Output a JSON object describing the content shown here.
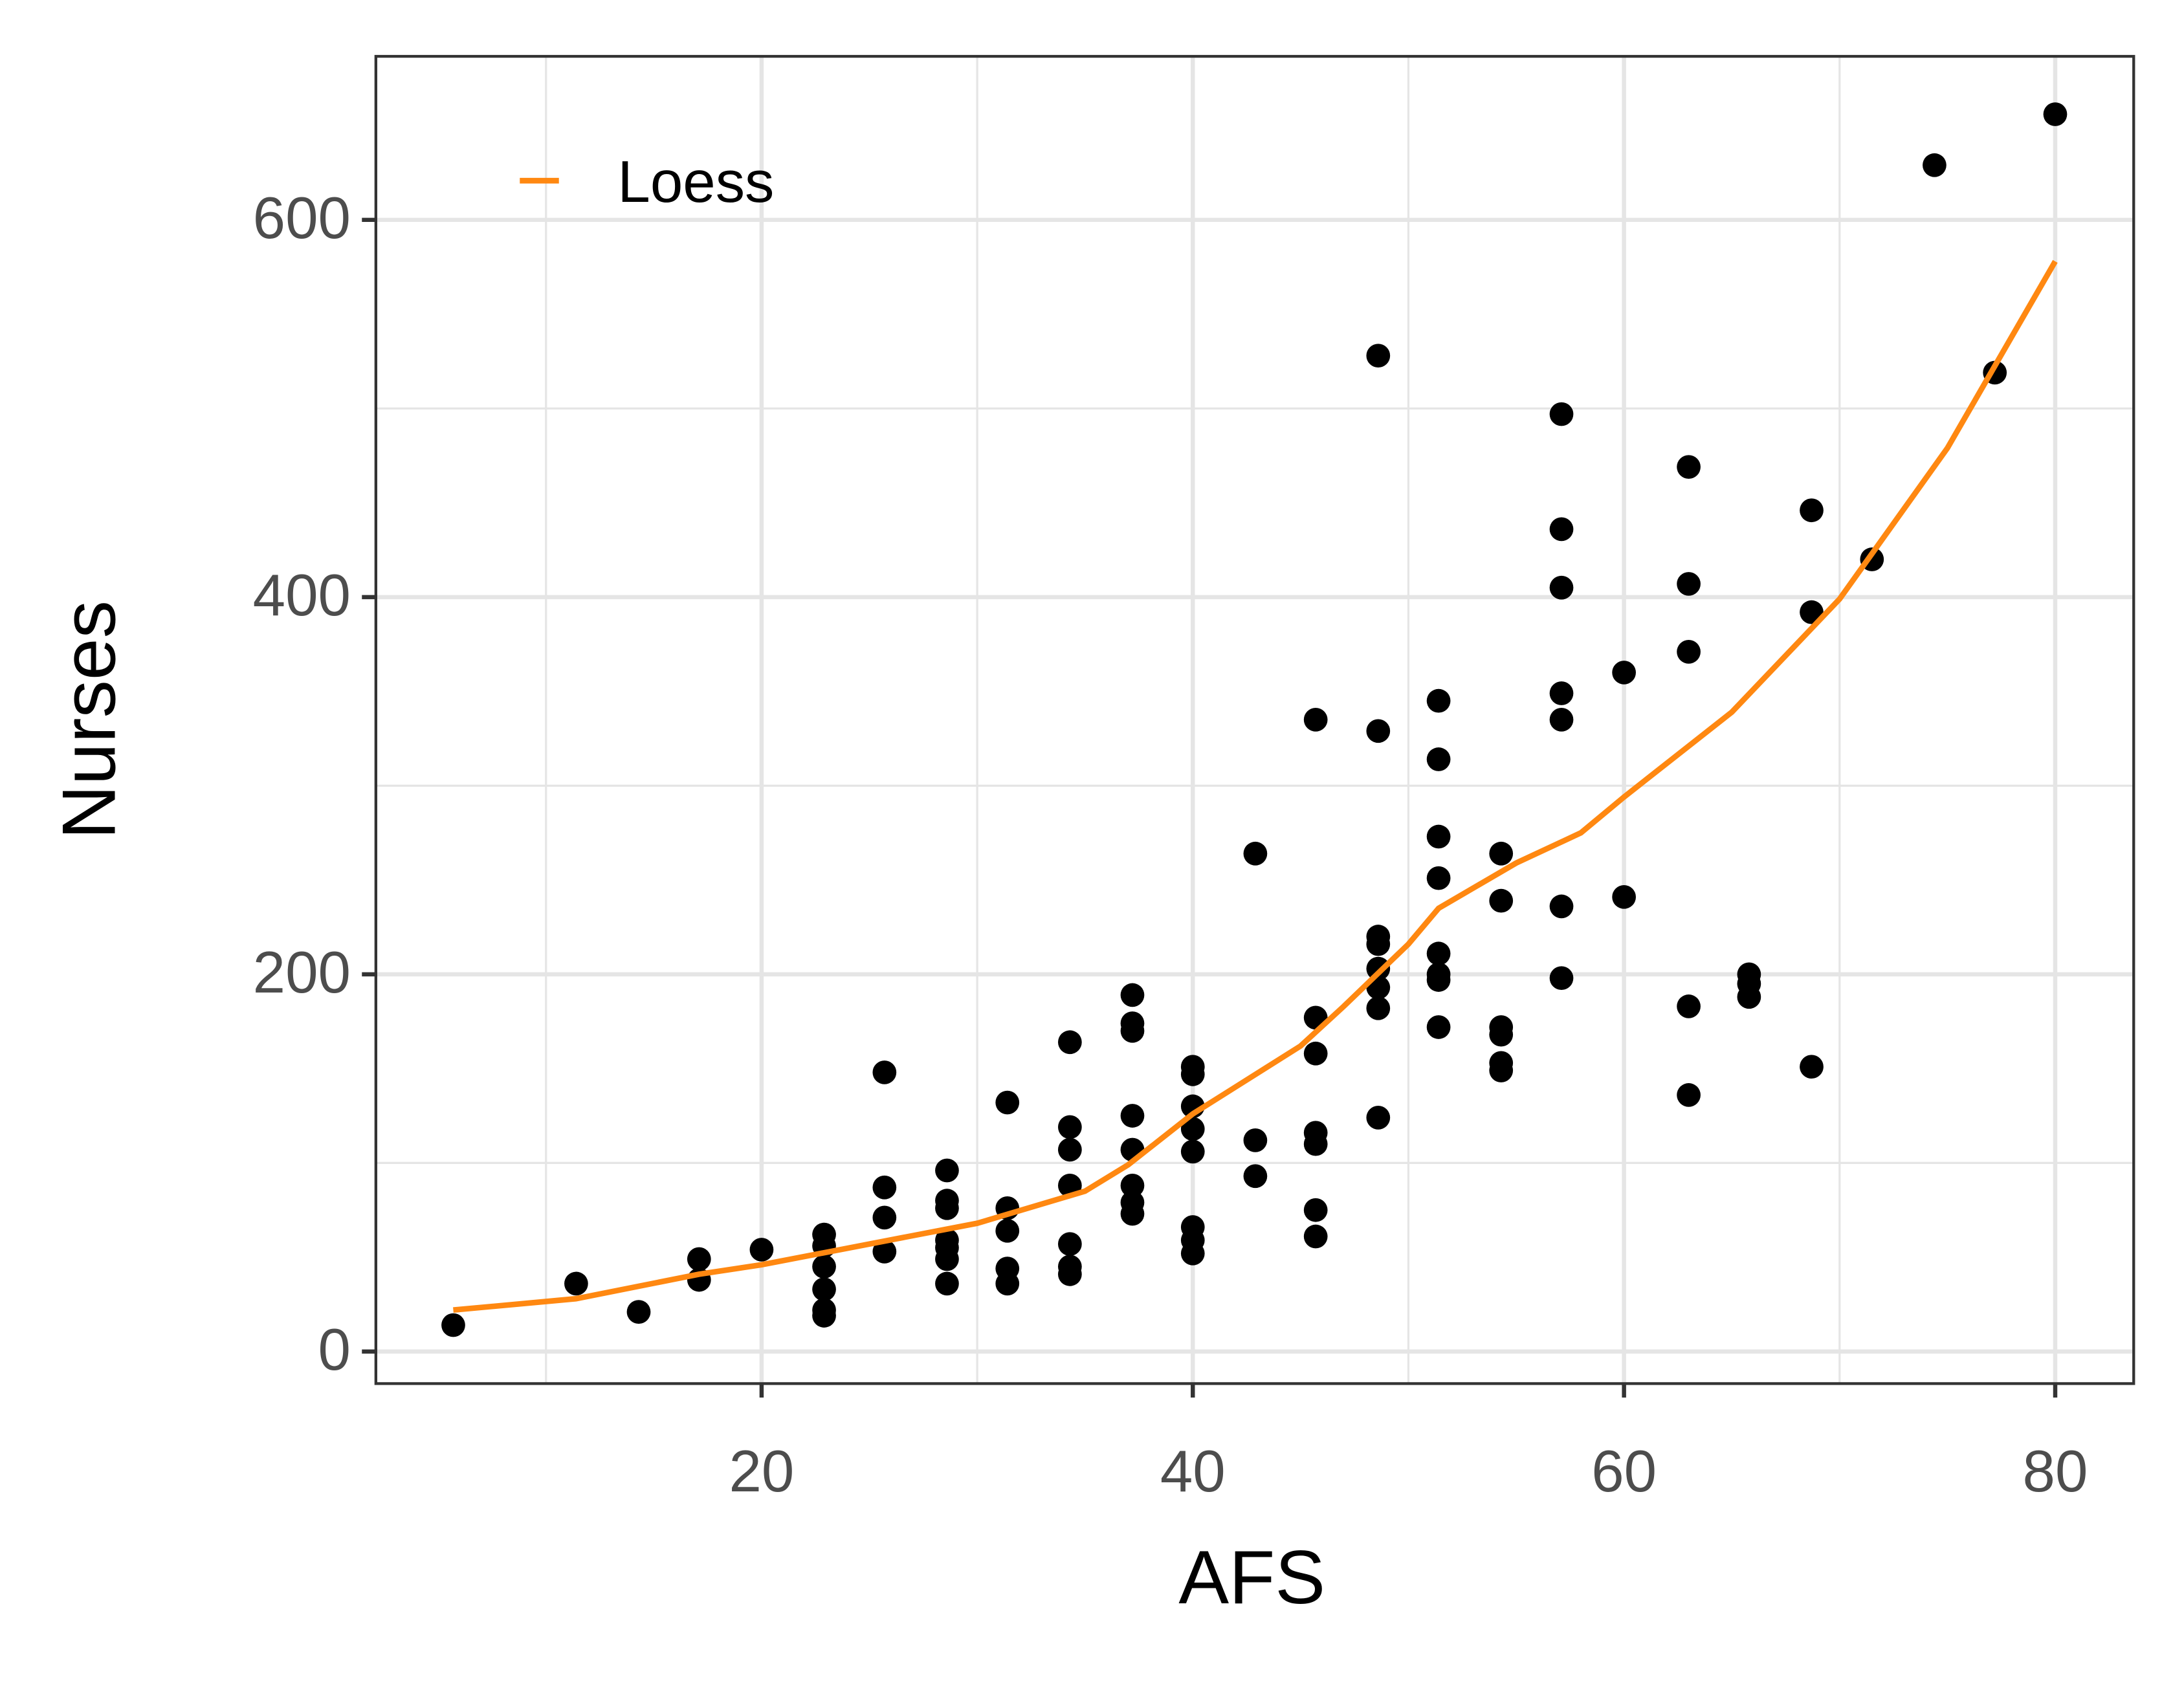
{
  "chart_data": {
    "type": "scatter",
    "x_label": "AFS",
    "y_label": "Nurses",
    "xlim": [
      2.11,
      83.64
    ],
    "ylim": [
      -17,
      686.7
    ],
    "xticks": [
      20,
      40,
      60,
      80
    ],
    "yticks": [
      0,
      200,
      400,
      600
    ],
    "x_minor_grid": [
      10,
      30,
      50,
      70
    ],
    "y_minor_grid": [
      100,
      300,
      500
    ],
    "grid": true,
    "grid_color": "#e5e5e5",
    "legend_position": "top-left",
    "series": [
      {
        "type": "scatter",
        "color": "#000000",
        "x": [
          5.7,
          11.4,
          14.3,
          17.1,
          17.1,
          20,
          22.9,
          22.9,
          22.9,
          22.9,
          22.9,
          22.9,
          25.7,
          25.7,
          25.7,
          25.7,
          28.6,
          28.6,
          28.6,
          28.6,
          28.6,
          28.6,
          28.6,
          31.4,
          31.4,
          31.4,
          31.4,
          31.4,
          34.3,
          34.3,
          34.3,
          34.3,
          34.3,
          34.3,
          34.3,
          37.2,
          37.2,
          37.2,
          37.2,
          37.2,
          37.2,
          37.2,
          37.2,
          40,
          40,
          40,
          40,
          40,
          40,
          40,
          40,
          42.9,
          42.9,
          42.9,
          45.7,
          45.7,
          45.7,
          45.7,
          45.7,
          45.7,
          45.7,
          48.6,
          48.6,
          48.6,
          48.6,
          48.6,
          48.6,
          48.6,
          48.6,
          51.4,
          51.4,
          51.4,
          51.4,
          51.4,
          51.4,
          51.4,
          51.4,
          54.3,
          54.3,
          54.3,
          54.3,
          54.3,
          54.3,
          57.1,
          57.1,
          57.1,
          57.1,
          57.1,
          57.1,
          57.1,
          60,
          60,
          63,
          63,
          63,
          63,
          63,
          65.8,
          65.8,
          65.8,
          68.7,
          68.7,
          68.7,
          71.5,
          74.4,
          77.2,
          80
        ],
        "values": [
          14,
          36,
          21,
          49,
          38,
          54,
          62,
          56,
          45,
          33,
          22,
          19,
          148,
          87,
          71,
          53,
          96,
          80,
          76,
          59,
          55,
          49,
          36,
          132,
          76,
          64,
          44,
          36,
          164,
          119,
          107,
          88,
          57,
          45,
          41,
          189,
          174,
          170,
          125,
          107,
          88,
          79,
          73,
          151,
          147,
          130,
          118,
          106,
          66,
          59,
          52,
          264,
          112,
          93,
          335,
          177,
          158,
          116,
          110,
          75,
          61,
          528,
          329,
          220,
          216,
          203,
          193,
          182,
          124,
          345,
          314,
          273,
          251,
          211,
          200,
          197,
          172,
          264,
          239,
          172,
          168,
          153,
          149,
          497,
          436,
          405,
          349,
          335,
          236,
          198,
          360,
          241,
          469,
          407,
          371,
          183,
          136,
          200,
          195,
          188,
          446,
          392,
          151,
          420,
          629,
          519,
          656
        ]
      },
      {
        "type": "line",
        "name": "Loess",
        "color": "#ff8811",
        "x": [
          5.7,
          11.4,
          17.1,
          20,
          30,
          35,
          37,
          40,
          45,
          47,
          50,
          51.4,
          55,
          58,
          60,
          65,
          70,
          75,
          80
        ],
        "values": [
          22,
          28,
          41,
          46,
          68,
          85,
          99,
          126,
          162,
          183,
          216,
          235,
          259,
          275,
          294,
          339,
          399,
          479,
          578
        ]
      }
    ]
  }
}
